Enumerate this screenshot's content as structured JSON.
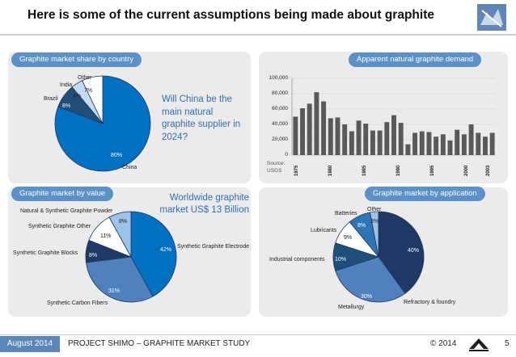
{
  "slide": {
    "title": "Here is some of the current assumptions being made about graphite"
  },
  "panels": {
    "share": {
      "title": "Graphite market share by country",
      "question": "Will China be the main natural graphite supplier in 2024?",
      "chart_data": {
        "type": "pie",
        "title": "Graphite market share by country",
        "labels": [
          "China",
          "Brazil",
          "India",
          "Other"
        ],
        "values": [
          80,
          8,
          4,
          7
        ],
        "value_labels": [
          "80%",
          "8%",
          "4%",
          "7%"
        ],
        "colors": [
          "#0070c0",
          "#1f4e79",
          "#c6dbef",
          "#ffffff"
        ]
      }
    },
    "demand": {
      "title": "Apparent natural graphite demand",
      "source": "Source: USGS",
      "chart_data": {
        "type": "bar",
        "title": "Apparent natural graphite demand",
        "x": [
          1975,
          1976,
          1977,
          1978,
          1979,
          1980,
          1981,
          1982,
          1983,
          1984,
          1985,
          1986,
          1987,
          1988,
          1989,
          1990,
          1991,
          1992,
          1993,
          1994,
          1995,
          1996,
          1997,
          1998,
          1999,
          2000,
          2001,
          2002,
          2003
        ],
        "values": [
          50000,
          61000,
          67000,
          82000,
          70000,
          48000,
          49000,
          40000,
          31000,
          45000,
          41000,
          32000,
          32000,
          43000,
          52000,
          42000,
          14000,
          29000,
          31000,
          30000,
          24000,
          27000,
          19000,
          33000,
          27000,
          40000,
          29000,
          24000,
          29000
        ],
        "ylim": [
          0,
          100000
        ],
        "yticks": [
          "0",
          "20,000",
          "40,000",
          "60,000",
          "80,000",
          "100,000"
        ],
        "xtick_labels": [
          "1975",
          "1980",
          "1985",
          "1990",
          "1995",
          "2000",
          "2003"
        ],
        "color": "#595959"
      }
    },
    "value": {
      "title": "Graphite market by value",
      "callout": "Worldwide graphite market US$ 13 Billion",
      "chart_data": {
        "type": "pie",
        "title": "Graphite market by value",
        "labels": [
          "Synthetic Graphite Electrode",
          "Synthetic Carbon Fibers",
          "Synthetic Graphite Blocks",
          "Synthetic Graphite Other",
          "Natural & Synthetic Graphite Powder"
        ],
        "values": [
          42,
          31,
          8,
          11,
          8
        ],
        "value_labels": [
          "42%",
          "31%",
          "8%",
          "11%",
          "8%"
        ],
        "colors": [
          "#0070c0",
          "#4f81bd",
          "#1f3864",
          "#ffffff",
          "#9dc3e6"
        ]
      }
    },
    "application": {
      "title": "Graphite market by application",
      "chart_data": {
        "type": "pie",
        "title": "Graphite market by application",
        "labels": [
          "Refractory & foundry",
          "Metallurgy",
          "Industrial components",
          "Lubricants",
          "Batteries",
          "Other"
        ],
        "values": [
          40,
          30,
          10,
          9,
          8,
          3
        ],
        "value_labels": [
          "40%",
          "30%",
          "10%",
          "9%",
          "8%",
          "3%"
        ],
        "colors": [
          "#1f3864",
          "#4f81bd",
          "#1f4e79",
          "#ffffff",
          "#2e75b6",
          "#9dc3e6"
        ]
      }
    }
  },
  "footer": {
    "date": "August 2014",
    "project": "PROJECT SHIMO – GRAPHITE MARKET STUDY",
    "copyright": "© 2014",
    "page": "5"
  }
}
